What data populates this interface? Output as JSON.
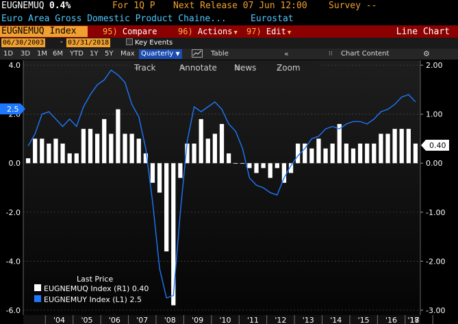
{
  "header": {
    "ticker": "EUGNEMUQ",
    "value": "0.4%",
    "period": "For 1Q P",
    "next_release": "Next Release 07 Jun 12:00",
    "survey": "Survey --",
    "description": "Euro Area Gross Domestic Product Chaine...",
    "source": "Eurostat"
  },
  "menu": {
    "ticker_index": "EUGNEMUQ Index",
    "compare_num": "95)",
    "compare": "Compare",
    "actions_num": "96)",
    "actions": "Actions",
    "edit_num": "97)",
    "edit": "Edit",
    "chart_type": "Line Chart"
  },
  "range": {
    "start": "06/30/2003",
    "end": "03/31/2018",
    "key_events": "Key Events"
  },
  "toolbar": {
    "periods": [
      "1D",
      "3D",
      "1M",
      "6M",
      "YTD",
      "1Y",
      "5Y",
      "Max"
    ],
    "frequency": "Quarterly",
    "table": "Table",
    "chart_content": "Chart Content"
  },
  "tools": {
    "track": "Track",
    "annotate": "Annotate",
    "news": "News",
    "zoom": "Zoom"
  },
  "legend": {
    "title": "Last Price",
    "items": [
      {
        "label": "EUGNEMUQ Index  (R1) 0.40",
        "color": "#ffffff"
      },
      {
        "label": "EUGNEMUY Index  (L1) 2.5",
        "color": "#1e78ff"
      }
    ]
  },
  "chart_data": {
    "type": "bar",
    "x_labels": [
      "'04",
      "'05",
      "'06",
      "'07",
      "'08",
      "'09",
      "'10",
      "'11",
      "'12",
      "'13",
      "'14",
      "'15",
      "'16",
      "'17",
      "'18"
    ],
    "left_axis": {
      "ticks": [
        "4.0",
        "2.0",
        "0.0",
        "-2.0",
        "-4.0",
        "-6.0"
      ],
      "range": [
        -6.2,
        4.2
      ]
    },
    "right_axis": {
      "ticks": [
        "2.00",
        "1.00",
        "0.00",
        "-1.00",
        "-2.00",
        "-3.00"
      ],
      "range": [
        -3.1,
        2.1
      ]
    },
    "last_value_left": "2.5",
    "last_value_right": "0.40",
    "series": [
      {
        "name": "EUGNEMUQ Index",
        "axis": "right",
        "type": "bar",
        "color": "#ffffff",
        "values": [
          0.1,
          0.5,
          0.5,
          0.4,
          0.5,
          0.4,
          0.2,
          0.2,
          0.7,
          0.7,
          0.6,
          0.9,
          0.6,
          1.1,
          0.6,
          0.6,
          0.5,
          0.2,
          -0.4,
          -0.6,
          -1.8,
          -2.9,
          -0.3,
          0.4,
          0.4,
          0.9,
          0.5,
          0.6,
          0.8,
          0.2,
          0.0,
          0.0,
          -0.1,
          -0.2,
          -0.1,
          -0.3,
          -0.1,
          -0.4,
          -0.2,
          0.4,
          0.4,
          0.3,
          0.5,
          0.3,
          0.4,
          0.8,
          0.4,
          0.3,
          0.4,
          0.4,
          0.4,
          0.6,
          0.6,
          0.7,
          0.7,
          0.7,
          0.4
        ]
      },
      {
        "name": "EUGNEMUY Index",
        "axis": "left",
        "type": "line",
        "color": "#1e78ff",
        "values": [
          0.7,
          1.2,
          2.0,
          2.1,
          1.8,
          1.5,
          1.8,
          1.5,
          2.3,
          2.8,
          3.2,
          3.4,
          3.8,
          3.6,
          3.3,
          2.4,
          1.9,
          0.6,
          -1.6,
          -4.3,
          -5.5,
          -5.4,
          -2.0,
          0.9,
          2.3,
          2.1,
          2.3,
          2.5,
          2.2,
          1.6,
          1.3,
          0.6,
          -0.6,
          -0.9,
          -1.0,
          -1.2,
          -1.3,
          -0.6,
          -0.1,
          0.3,
          0.6,
          1.0,
          1.1,
          1.4,
          1.5,
          1.4,
          1.6,
          1.7,
          1.7,
          1.6,
          1.8,
          2.1,
          2.2,
          2.4,
          2.7,
          2.8,
          2.5
        ]
      }
    ]
  },
  "colors": {
    "bar": "#ffffff",
    "line": "#1e78ff",
    "accent": "#f0a030",
    "menu_bg": "#8b0000"
  }
}
